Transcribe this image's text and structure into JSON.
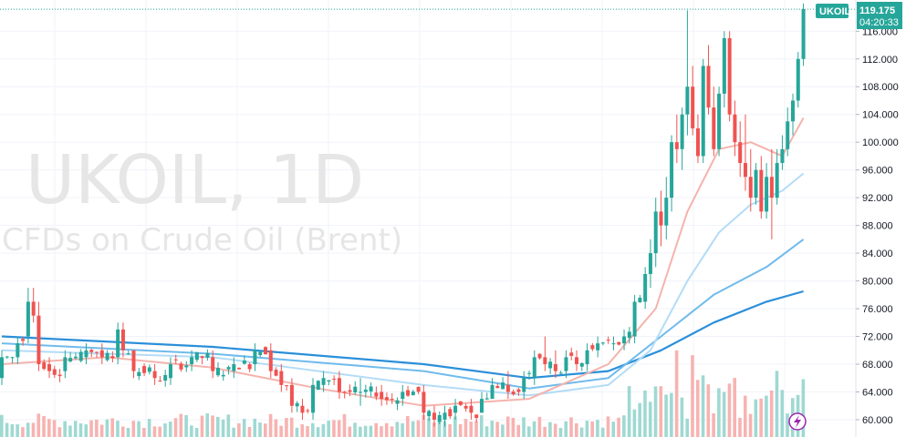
{
  "watermark": {
    "symbol_line": "UKOIL, 1D",
    "description": "CFDs on Crude Oil (Brent)"
  },
  "price_tag": {
    "symbol": "UKOIL",
    "price": "119.175",
    "countdown": "04:20:33"
  },
  "colors": {
    "up": "#26a69a",
    "down": "#ef5350",
    "up_volume": "#9fd9d2",
    "down_volume": "#f7b3b1",
    "ma_fast": "#f5b3ad",
    "ma_mid1": "#b3dcf6",
    "ma_mid2": "#6fbbec",
    "ma_slow": "#2b8fd9",
    "tag_bg": "#26a69a"
  },
  "chart_data": {
    "type": "candlestick",
    "symbol": "UKOIL",
    "interval": "1D",
    "ylim": [
      57.5,
      120.5
    ],
    "yticks": [
      "116.000",
      "112.000",
      "108.000",
      "104.000",
      "100.000",
      "96.000",
      "92.000",
      "88.000",
      "84.000",
      "80.000",
      "76.000",
      "72.000",
      "68.000",
      "64.000",
      "60.000"
    ],
    "last_price": 119.175,
    "ohlc_anchors": [
      [
        0,
        66,
        70,
        65,
        69
      ],
      [
        3,
        69,
        72,
        68,
        71
      ],
      [
        5,
        72,
        79,
        71,
        77
      ],
      [
        6,
        77,
        79,
        74,
        75
      ],
      [
        7,
        75,
        77,
        67,
        68
      ],
      [
        9,
        68,
        69,
        66,
        67
      ],
      [
        12,
        67,
        70,
        66,
        69
      ],
      [
        16,
        69,
        71,
        68,
        70
      ],
      [
        19,
        70,
        71,
        68,
        69
      ],
      [
        22,
        69,
        74,
        68,
        73
      ],
      [
        23,
        73,
        74,
        69,
        70
      ],
      [
        25,
        70,
        70,
        66,
        67
      ],
      [
        29,
        67,
        68,
        65,
        66
      ],
      [
        32,
        66,
        69,
        65,
        68
      ],
      [
        36,
        68,
        70,
        67,
        69
      ],
      [
        40,
        69,
        70,
        66,
        67
      ],
      [
        44,
        67,
        69,
        66,
        68
      ],
      [
        48,
        68,
        71,
        67,
        70
      ],
      [
        51,
        70,
        71,
        66,
        67
      ],
      [
        53,
        67,
        68,
        64,
        65
      ],
      [
        55,
        65,
        66,
        61,
        62
      ],
      [
        57,
        62,
        63,
        60,
        61
      ],
      [
        59,
        61,
        66,
        60,
        65
      ],
      [
        61,
        65,
        67,
        64,
        66
      ],
      [
        64,
        66,
        67,
        63,
        64
      ],
      [
        68,
        64,
        66,
        62,
        64
      ],
      [
        72,
        64,
        65,
        62,
        63
      ],
      [
        76,
        63,
        65,
        62,
        64
      ],
      [
        80,
        64,
        65,
        60,
        61
      ],
      [
        82,
        61,
        62,
        59,
        60
      ],
      [
        84,
        60,
        62,
        59,
        61
      ],
      [
        86,
        61,
        63,
        60,
        62
      ],
      [
        89,
        62,
        63,
        60,
        61
      ],
      [
        91,
        61,
        64,
        61,
        63
      ],
      [
        93,
        63,
        66,
        63,
        65
      ],
      [
        96,
        65,
        67,
        63,
        64
      ],
      [
        99,
        64,
        67,
        63,
        66
      ],
      [
        101,
        66,
        70,
        65,
        69
      ],
      [
        103,
        69,
        72,
        67,
        68
      ],
      [
        105,
        68,
        70,
        66,
        67
      ],
      [
        107,
        67,
        70,
        66,
        69
      ],
      [
        109,
        69,
        70,
        67,
        68
      ],
      [
        111,
        68,
        71,
        67,
        70
      ],
      [
        113,
        70,
        72,
        69,
        71
      ],
      [
        116,
        71,
        72,
        70,
        71
      ],
      [
        118,
        71,
        73,
        70,
        72
      ],
      [
        120,
        72,
        78,
        71,
        77
      ],
      [
        122,
        77,
        82,
        76,
        81
      ],
      [
        123,
        81,
        86,
        79,
        84
      ],
      [
        124,
        84,
        92,
        82,
        90
      ],
      [
        125,
        90,
        93,
        85,
        88
      ],
      [
        126,
        88,
        95,
        86,
        92
      ],
      [
        127,
        92,
        101,
        90,
        100
      ],
      [
        128,
        100,
        104,
        97,
        99
      ],
      [
        129,
        99,
        105,
        96,
        104
      ],
      [
        130,
        104,
        119,
        101,
        108
      ],
      [
        131,
        108,
        111,
        101,
        102
      ],
      [
        132,
        102,
        104,
        97,
        98
      ],
      [
        133,
        98,
        112,
        97,
        111
      ],
      [
        134,
        111,
        114,
        104,
        105
      ],
      [
        135,
        105,
        108,
        98,
        99
      ],
      [
        136,
        99,
        108,
        98,
        107
      ],
      [
        137,
        107,
        116,
        105,
        115
      ],
      [
        138,
        115,
        116,
        103,
        104
      ],
      [
        139,
        104,
        106,
        98,
        100
      ],
      [
        140,
        100,
        103,
        95,
        97
      ],
      [
        141,
        97,
        104,
        93,
        95
      ],
      [
        142,
        95,
        99,
        90,
        92
      ],
      [
        143,
        92,
        97,
        91,
        96
      ],
      [
        144,
        96,
        98,
        89,
        90
      ],
      [
        145,
        90,
        97,
        89,
        95
      ],
      [
        146,
        95,
        99,
        86,
        92
      ],
      [
        147,
        92,
        99,
        91,
        97
      ],
      [
        148,
        97,
        101,
        96,
        99
      ],
      [
        149,
        99,
        105,
        98,
        103
      ],
      [
        150,
        103,
        107,
        101,
        106
      ],
      [
        151,
        106,
        113,
        105,
        112
      ],
      [
        152,
        112,
        120,
        111,
        119.175
      ]
    ],
    "moving_averages": [
      {
        "key": "ma_slow",
        "values": [
          [
            0,
            72
          ],
          [
            40,
            70.5
          ],
          [
            80,
            68
          ],
          [
            100,
            66
          ],
          [
            115,
            67
          ],
          [
            125,
            70
          ],
          [
            135,
            74
          ],
          [
            145,
            77
          ],
          [
            152,
            78.5
          ]
        ]
      },
      {
        "key": "ma_mid2",
        "values": [
          [
            0,
            71
          ],
          [
            40,
            69.5
          ],
          [
            80,
            67
          ],
          [
            100,
            64.5
          ],
          [
            115,
            66
          ],
          [
            125,
            72
          ],
          [
            135,
            78
          ],
          [
            145,
            82
          ],
          [
            152,
            86
          ]
        ]
      },
      {
        "key": "ma_mid1",
        "values": [
          [
            0,
            70
          ],
          [
            40,
            69
          ],
          [
            80,
            65
          ],
          [
            100,
            63.5
          ],
          [
            115,
            65
          ],
          [
            123,
            70
          ],
          [
            130,
            80
          ],
          [
            136,
            87
          ],
          [
            142,
            91
          ],
          [
            148,
            93
          ],
          [
            152,
            95.5
          ]
        ]
      },
      {
        "key": "ma_fast",
        "values": [
          [
            0,
            68
          ],
          [
            20,
            69
          ],
          [
            40,
            67.5
          ],
          [
            60,
            64.5
          ],
          [
            80,
            62
          ],
          [
            100,
            63
          ],
          [
            115,
            68
          ],
          [
            124,
            76
          ],
          [
            130,
            90
          ],
          [
            136,
            99
          ],
          [
            142,
            100
          ],
          [
            148,
            98
          ],
          [
            152,
            103.5
          ]
        ]
      }
    ]
  }
}
